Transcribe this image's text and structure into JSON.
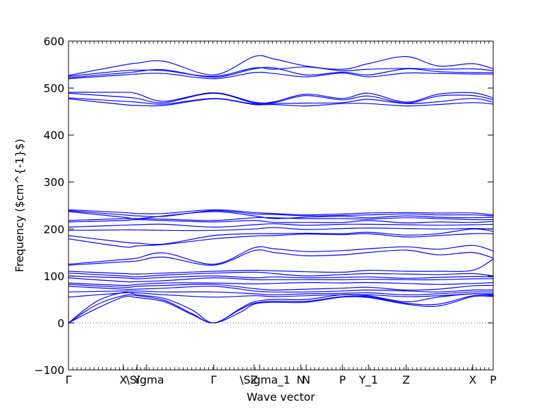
{
  "chart_data": {
    "type": "line",
    "title": "",
    "xlabel": "Wave vector",
    "ylabel": "Frequency ($cm^{-1}$)",
    "ylim": [
      -100,
      600
    ],
    "yticks": [
      -100,
      0,
      100,
      200,
      300,
      400,
      500,
      600
    ],
    "grid": false,
    "legend": "none",
    "line_color": "#0000ff",
    "zero_line_color": "#555555",
    "x_labels": [
      {
        "x": 0.0,
        "label": "Γ"
      },
      {
        "x": 0.8,
        "label": "X"
      },
      {
        "x": 1.0,
        "label": "Y"
      },
      {
        "x": 1.14,
        "label": "\\Sigma"
      },
      {
        "x": 2.12,
        "label": "Γ"
      },
      {
        "x": 2.71,
        "label": "Z"
      },
      {
        "x": 2.79,
        "label": "\\Sigma_1"
      },
      {
        "x": 3.39,
        "label": "N"
      },
      {
        "x": 3.47,
        "label": "N"
      },
      {
        "x": 4.0,
        "label": "P"
      },
      {
        "x": 4.38,
        "label": "Y_1"
      },
      {
        "x": 4.93,
        "label": "Z"
      },
      {
        "x": 5.9,
        "label": "X"
      },
      {
        "x": 6.2,
        "label": "P"
      }
    ],
    "xlim": [
      0,
      6.2
    ],
    "series": [
      {
        "x": [
          0,
          0.8,
          1.0,
          1.4,
          2.12,
          2.71,
          3.0,
          3.47,
          4.0,
          4.38,
          4.93,
          5.4,
          5.9,
          6.2
        ],
        "values": [
          527,
          549,
          553,
          557,
          528,
          567,
          562,
          547,
          540,
          552,
          567,
          547,
          552,
          541
        ]
      },
      {
        "x": [
          0,
          0.8,
          1.0,
          1.4,
          2.12,
          2.71,
          3.0,
          3.47,
          4.0,
          4.38,
          4.93,
          5.4,
          5.9,
          6.2
        ],
        "values": [
          525,
          537,
          538,
          537,
          525,
          543,
          540,
          545,
          537,
          540,
          542,
          540,
          541,
          537
        ]
      },
      {
        "x": [
          0,
          0.8,
          1.0,
          1.4,
          2.12,
          2.71,
          3.0,
          3.47,
          4.0,
          4.38,
          4.93,
          5.4,
          5.9,
          6.2
        ],
        "values": [
          522,
          532,
          535,
          539,
          523,
          541,
          543,
          528,
          534,
          528,
          541,
          535,
          533,
          533
        ]
      },
      {
        "x": [
          0,
          0.8,
          1.0,
          1.4,
          2.12,
          2.71,
          3.0,
          3.47,
          4.0,
          4.38,
          4.93,
          5.4,
          5.9,
          6.2
        ],
        "values": [
          520,
          528,
          530,
          531,
          520,
          533,
          531,
          524,
          532,
          524,
          532,
          531,
          530,
          530
        ]
      },
      {
        "x": [
          0,
          0.8,
          1.0,
          1.4,
          2.12,
          2.71,
          3.0,
          3.47,
          4.0,
          4.38,
          4.93,
          5.4,
          5.9,
          6.2
        ],
        "values": [
          491,
          491,
          488,
          472,
          490,
          470,
          471,
          487,
          478,
          489,
          470,
          487,
          490,
          479
        ]
      },
      {
        "x": [
          0,
          0.8,
          1.0,
          1.4,
          2.12,
          2.71,
          3.0,
          3.47,
          4.0,
          4.38,
          4.93,
          5.4,
          5.9,
          6.2
        ],
        "values": [
          489,
          481,
          478,
          469,
          489,
          468,
          469,
          484,
          475,
          483,
          468,
          483,
          484,
          475
        ]
      },
      {
        "x": [
          0,
          0.8,
          1.0,
          1.4,
          2.12,
          2.71,
          3.0,
          3.47,
          4.0,
          4.38,
          4.93,
          5.4,
          5.9,
          6.2
        ],
        "values": [
          479,
          472,
          470,
          466,
          478,
          466,
          467,
          468,
          469,
          476,
          467,
          471,
          478,
          470
        ]
      },
      {
        "x": [
          0,
          0.8,
          1.0,
          1.4,
          2.12,
          2.71,
          3.0,
          3.47,
          4.0,
          4.38,
          4.93,
          5.4,
          5.9,
          6.2
        ],
        "values": [
          477,
          465,
          463,
          463,
          477,
          465,
          465,
          462,
          467,
          467,
          462,
          465,
          469,
          466
        ]
      },
      {
        "x": [
          0,
          0.8,
          1.0,
          1.4,
          2.12,
          2.71,
          3.0,
          3.47,
          4.0,
          4.38,
          4.93,
          5.4,
          5.9,
          6.2
        ],
        "values": [
          241,
          235,
          233,
          233,
          241,
          235,
          233,
          230,
          232,
          234,
          235,
          234,
          234,
          230
        ]
      },
      {
        "x": [
          0,
          0.8,
          1.0,
          1.4,
          2.12,
          2.71,
          3.0,
          3.47,
          4.0,
          4.38,
          4.93,
          5.4,
          5.9,
          6.2
        ],
        "values": [
          239,
          230,
          228,
          227,
          239,
          232,
          231,
          228,
          229,
          230,
          232,
          230,
          230,
          228
        ]
      },
      {
        "x": [
          0,
          0.8,
          1.0,
          1.4,
          2.12,
          2.71,
          3.0,
          3.47,
          4.0,
          4.38,
          4.93,
          5.4,
          5.9,
          6.2
        ],
        "values": [
          237,
          225,
          222,
          228,
          237,
          228,
          222,
          225,
          227,
          224,
          228,
          225,
          224,
          225
        ]
      },
      {
        "x": [
          0,
          0.8,
          1.0,
          1.4,
          2.12,
          2.71,
          3.0,
          3.47,
          4.0,
          4.38,
          4.93,
          5.4,
          5.9,
          6.2
        ],
        "values": [
          218,
          222,
          222,
          221,
          218,
          224,
          224,
          222,
          222,
          221,
          224,
          222,
          220,
          220
        ]
      },
      {
        "x": [
          0,
          0.8,
          1.0,
          1.4,
          2.12,
          2.71,
          3.0,
          3.47,
          4.0,
          4.38,
          4.93,
          5.4,
          5.9,
          6.2
        ],
        "values": [
          215,
          218,
          220,
          218,
          215,
          218,
          214,
          214,
          214,
          218,
          213,
          215,
          214,
          216
        ]
      },
      {
        "x": [
          0,
          0.8,
          1.0,
          1.4,
          2.12,
          2.71,
          3.0,
          3.47,
          4.0,
          4.38,
          4.93,
          5.4,
          5.9,
          6.2
        ],
        "values": [
          204,
          208,
          209,
          210,
          204,
          209,
          211,
          208,
          210,
          210,
          209,
          208,
          209,
          210
        ]
      },
      {
        "x": [
          0,
          0.8,
          1.0,
          1.4,
          2.12,
          2.71,
          3.0,
          3.47,
          4.0,
          4.38,
          4.93,
          5.4,
          5.9,
          6.2
        ],
        "values": [
          197,
          198,
          198,
          197,
          197,
          200,
          203,
          199,
          201,
          202,
          201,
          200,
          201,
          200
        ]
      },
      {
        "x": [
          0,
          0.8,
          1.0,
          1.4,
          2.12,
          2.71,
          3.0,
          3.47,
          4.0,
          4.38,
          4.93,
          5.4,
          5.9,
          6.2
        ],
        "values": [
          186,
          172,
          170,
          168,
          186,
          190,
          190,
          191,
          190,
          193,
          187,
          190,
          200,
          195
        ]
      },
      {
        "x": [
          0,
          0.8,
          1.0,
          1.4,
          2.12,
          2.71,
          3.0,
          3.47,
          4.0,
          4.38,
          4.93,
          5.4,
          5.9,
          6.2
        ],
        "values": [
          179,
          162,
          164,
          167,
          179,
          185,
          186,
          189,
          188,
          190,
          183,
          186,
          190,
          190
        ]
      },
      {
        "x": [
          0,
          0.8,
          1.0,
          1.4,
          2.12,
          2.71,
          3.0,
          3.47,
          4.0,
          4.38,
          4.93,
          5.4,
          5.9,
          6.2
        ],
        "values": [
          125,
          135,
          138,
          149,
          125,
          160,
          158,
          152,
          154,
          158,
          162,
          157,
          165,
          153
        ]
      },
      {
        "x": [
          0,
          0.8,
          1.0,
          1.4,
          2.12,
          2.71,
          3.0,
          3.47,
          4.0,
          4.38,
          4.93,
          5.4,
          5.9,
          6.2
        ],
        "values": [
          123,
          130,
          132,
          140,
          123,
          154,
          150,
          143,
          145,
          150,
          155,
          145,
          150,
          138
        ]
      },
      {
        "x": [
          0,
          0.8,
          1.0,
          1.4,
          2.12,
          2.71,
          3.0,
          3.47,
          4.0,
          4.38,
          4.93,
          5.4,
          5.9,
          6.2
        ],
        "values": [
          110,
          105,
          104,
          106,
          110,
          112,
          111,
          109,
          108,
          112,
          110,
          110,
          112,
          136
        ]
      },
      {
        "x": [
          0,
          0.8,
          1.0,
          1.4,
          2.12,
          2.71,
          3.0,
          3.47,
          4.0,
          4.38,
          4.93,
          5.4,
          5.9,
          6.2
        ],
        "values": [
          106,
          100,
          98,
          102,
          106,
          108,
          105,
          100,
          103,
          105,
          104,
          103,
          105,
          100
        ]
      },
      {
        "x": [
          0,
          0.8,
          1.0,
          1.4,
          2.12,
          2.71,
          3.0,
          3.47,
          4.0,
          4.38,
          4.93,
          5.4,
          5.9,
          6.2
        ],
        "values": [
          100,
          96,
          94,
          97,
          100,
          96,
          98,
          96,
          97,
          98,
          95,
          97,
          99,
          98
        ]
      },
      {
        "x": [
          0,
          0.8,
          1.0,
          1.4,
          2.12,
          2.71,
          3.0,
          3.47,
          4.0,
          4.38,
          4.93,
          5.4,
          5.9,
          6.2
        ],
        "values": [
          96,
          88,
          88,
          90,
          96,
          92,
          92,
          92,
          92,
          93,
          92,
          92,
          94,
          94
        ]
      },
      {
        "x": [
          0,
          0.8,
          1.0,
          1.4,
          2.12,
          2.71,
          3.0,
          3.47,
          4.0,
          4.38,
          4.93,
          5.4,
          5.9,
          6.2
        ],
        "values": [
          85,
          80,
          82,
          85,
          85,
          83,
          84,
          86,
          85,
          86,
          84,
          82,
          84,
          86
        ]
      },
      {
        "x": [
          0,
          0.8,
          1.0,
          1.4,
          2.12,
          2.71,
          3.0,
          3.47,
          4.0,
          4.38,
          4.93,
          5.4,
          5.9,
          6.2
        ],
        "values": [
          82,
          76,
          78,
          80,
          82,
          73,
          70,
          72,
          74,
          76,
          70,
          72,
          79,
          80
        ]
      },
      {
        "x": [
          0,
          0.8,
          1.0,
          1.4,
          2.12,
          2.71,
          3.0,
          3.47,
          4.0,
          4.38,
          4.93,
          5.4,
          5.9,
          6.2
        ],
        "values": [
          78,
          72,
          72,
          74,
          78,
          68,
          66,
          66,
          68,
          70,
          68,
          66,
          70,
          70
        ]
      },
      {
        "x": [
          0,
          0.8,
          1.0,
          1.4,
          2.12,
          2.71,
          3.0,
          3.47,
          4.0,
          4.38,
          4.93,
          5.4,
          5.9,
          6.2
        ],
        "values": [
          66,
          68,
          68,
          66,
          66,
          62,
          60,
          62,
          63,
          64,
          60,
          62,
          66,
          66
        ]
      },
      {
        "x": [
          0,
          0.8,
          1.0,
          1.4,
          2.12,
          2.71,
          3.0,
          3.47,
          4.0,
          4.38,
          4.93,
          5.4,
          5.9,
          6.2
        ],
        "values": [
          55,
          64,
          64,
          60,
          55,
          58,
          56,
          58,
          60,
          60,
          56,
          58,
          62,
          62
        ]
      },
      {
        "x": [
          0,
          0.4,
          0.8,
          1.0,
          1.4,
          1.8,
          2.12,
          2.5,
          2.71,
          3.0,
          3.47,
          4.0,
          4.38,
          4.93,
          5.4,
          5.9,
          6.2
        ],
        "values": [
          0,
          45,
          65,
          60,
          52,
          28,
          0,
          30,
          45,
          50,
          50,
          60,
          58,
          45,
          55,
          62,
          60
        ]
      },
      {
        "x": [
          0,
          0.4,
          0.8,
          1.0,
          1.4,
          1.8,
          2.12,
          2.5,
          2.71,
          3.0,
          3.47,
          4.0,
          4.38,
          4.93,
          5.4,
          5.9,
          6.2
        ],
        "values": [
          0,
          38,
          58,
          58,
          48,
          20,
          0,
          28,
          42,
          46,
          46,
          56,
          56,
          42,
          40,
          58,
          58
        ]
      },
      {
        "x": [
          0,
          0.4,
          0.8,
          1.0,
          1.4,
          1.8,
          2.12,
          2.5,
          2.71,
          3.0,
          3.47,
          4.0,
          4.38,
          4.93,
          5.4,
          5.9,
          6.2
        ],
        "values": [
          0,
          30,
          55,
          54,
          45,
          18,
          0,
          22,
          40,
          44,
          44,
          55,
          54,
          40,
          36,
          56,
          56
        ]
      }
    ]
  }
}
